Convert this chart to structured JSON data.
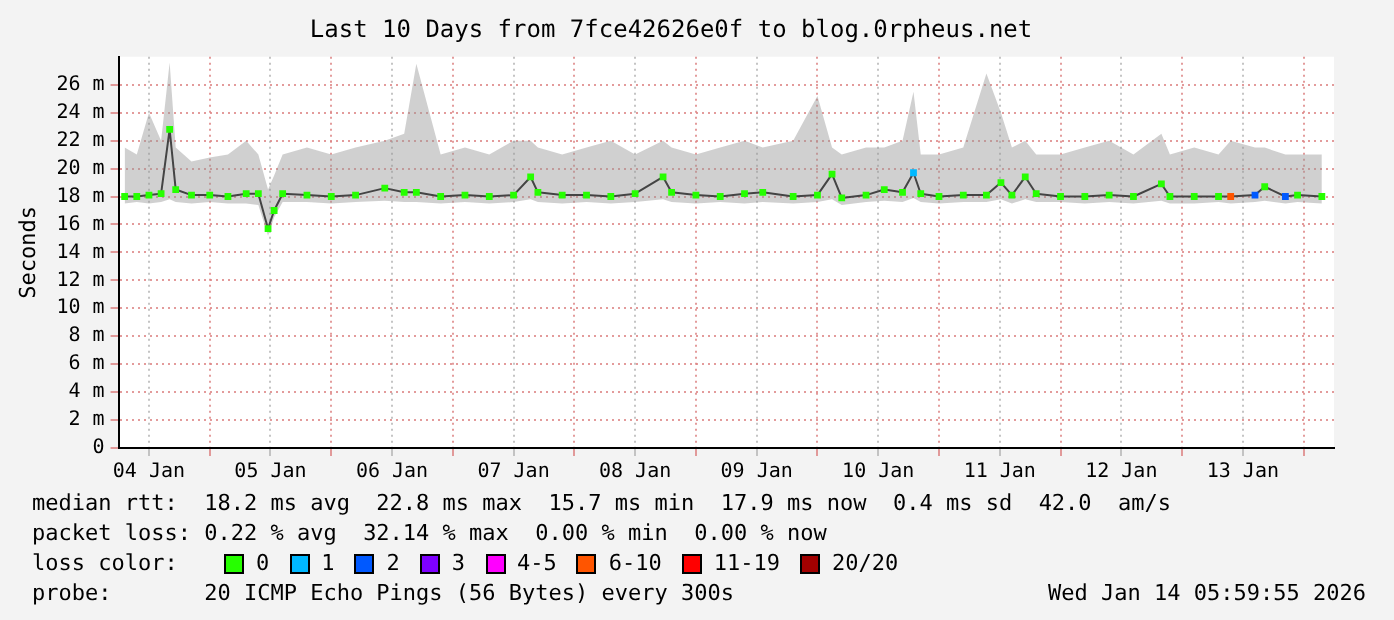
{
  "chart_data": {
    "type": "line",
    "title": "Last 10 Days from 7fce42626e0f to blog.0rpheus.net",
    "ylabel": "Seconds",
    "legend_title": "loss color:",
    "legend": "bottom",
    "grid": true,
    "xlim": [
      "2026-01-04T06:00",
      "2026-01-14T06:00"
    ],
    "xticks": [
      {
        "value": "2026-01-04T12:00",
        "label": "04 Jan"
      },
      {
        "value": "2026-01-05T00:00",
        "label": null
      },
      {
        "value": "2026-01-05T12:00",
        "label": "05 Jan"
      },
      {
        "value": "2026-01-06T00:00",
        "label": null
      },
      {
        "value": "2026-01-06T12:00",
        "label": "06 Jan"
      },
      {
        "value": "2026-01-07T00:00",
        "label": null
      },
      {
        "value": "2026-01-07T12:00",
        "label": "07 Jan"
      },
      {
        "value": "2026-01-08T00:00",
        "label": null
      },
      {
        "value": "2026-01-08T12:00",
        "label": "08 Jan"
      },
      {
        "value": "2026-01-09T00:00",
        "label": null
      },
      {
        "value": "2026-01-09T12:00",
        "label": "09 Jan"
      },
      {
        "value": "2026-01-10T00:00",
        "label": null
      },
      {
        "value": "2026-01-10T12:00",
        "label": "10 Jan"
      },
      {
        "value": "2026-01-11T00:00",
        "label": null
      },
      {
        "value": "2026-01-11T12:00",
        "label": "11 Jan"
      },
      {
        "value": "2026-01-12T00:00",
        "label": null
      },
      {
        "value": "2026-01-12T12:00",
        "label": "12 Jan"
      },
      {
        "value": "2026-01-13T00:00",
        "label": null
      },
      {
        "value": "2026-01-13T12:00",
        "label": "13 Jan"
      },
      {
        "value": "2026-01-14T00:00",
        "label": null
      }
    ],
    "ylim": [
      0,
      28
    ],
    "yticks": [
      0,
      {
        "value": 2,
        "label": "2 m"
      },
      {
        "value": 4,
        "label": "4 m"
      },
      {
        "value": 6,
        "label": "6 m"
      },
      {
        "value": 8,
        "label": "8 m"
      },
      {
        "value": 10,
        "label": "10 m"
      },
      {
        "value": 12,
        "label": "12 m"
      },
      {
        "value": 14,
        "label": "14 m"
      },
      {
        "value": 16,
        "label": "16 m"
      },
      {
        "value": 18,
        "label": "18 m"
      },
      {
        "value": 20,
        "label": "20 m"
      },
      {
        "value": 22,
        "label": "22 m"
      },
      {
        "value": 24,
        "label": "24 m"
      },
      {
        "value": 26,
        "label": "26 m"
      }
    ],
    "series": [
      {
        "color": "#000000",
        "x": [
          "2026-01-04T07:12",
          "2026-01-04T09:36",
          "2026-01-04T12:00",
          "2026-01-04T14:24",
          "2026-01-04T16:05",
          "2026-01-04T17:17",
          "2026-01-04T20:24",
          "2026-01-05T00:00",
          "2026-01-05T03:36",
          "2026-01-05T07:12",
          "2026-01-05T09:36",
          "2026-01-05T11:31",
          "2026-01-05T12:43",
          "2026-01-05T14:24",
          "2026-01-05T19:12",
          "2026-01-06T00:00",
          "2026-01-06T04:48",
          "2026-01-06T10:34",
          "2026-01-06T14:24",
          "2026-01-06T16:48",
          "2026-01-06T21:36",
          "2026-01-07T02:24",
          "2026-01-07T07:12",
          "2026-01-07T12:00",
          "2026-01-07T15:22",
          "2026-01-07T16:48",
          "2026-01-07T21:36",
          "2026-01-08T02:24",
          "2026-01-08T07:12",
          "2026-01-08T12:00",
          "2026-01-08T17:31",
          "2026-01-08T19:12",
          "2026-01-09T00:00",
          "2026-01-09T04:48",
          "2026-01-09T09:36",
          "2026-01-09T13:12",
          "2026-01-09T19:12",
          "2026-01-10T00:00",
          "2026-01-10T02:53",
          "2026-01-10T04:48",
          "2026-01-10T09:36",
          "2026-01-10T13:12",
          "2026-01-10T16:48",
          "2026-01-10T18:58",
          "2026-01-10T20:24",
          "2026-01-11T00:00",
          "2026-01-11T04:48",
          "2026-01-11T09:22",
          "2026-01-11T12:14",
          "2026-01-11T14:24",
          "2026-01-11T17:02",
          "2026-01-11T19:12",
          "2026-01-12T00:00",
          "2026-01-12T04:48",
          "2026-01-12T09:36",
          "2026-01-12T14:24",
          "2026-01-12T19:55",
          "2026-01-12T21:36",
          "2026-01-13T02:24",
          "2026-01-13T07:12",
          "2026-01-13T09:36",
          "2026-01-13T14:24",
          "2026-01-13T16:19",
          "2026-01-13T20:24",
          "2026-01-13T22:48",
          "2026-01-14T03:36"
        ],
        "values": [
          18,
          18,
          18.1,
          18.2,
          22.8,
          18.5,
          18.1,
          18.1,
          18,
          18.2,
          18.2,
          15.7,
          17,
          18.2,
          18.1,
          18,
          18.1,
          18.6,
          18.3,
          18.3,
          18,
          18.1,
          18,
          18.1,
          19.4,
          18.3,
          18.1,
          18.1,
          18,
          18.2,
          19.4,
          18.3,
          18.1,
          18,
          18.2,
          18.3,
          18,
          18.1,
          19.6,
          17.9,
          18.1,
          18.5,
          18.3,
          19.7,
          18.2,
          18,
          18.1,
          18.1,
          19,
          18.1,
          19.4,
          18.2,
          18,
          18,
          18.1,
          18,
          18.9,
          18,
          18,
          18,
          18,
          18.1,
          18.7,
          18,
          18.1,
          18
        ],
        "lower": [
          17.5,
          17.6,
          17.5,
          17.6,
          17.8,
          17.6,
          17.5,
          17.6,
          17.5,
          17.5,
          17.4,
          15.2,
          16.5,
          17.6,
          17.6,
          17.5,
          17.6,
          17.7,
          17.6,
          17.6,
          17.5,
          17.6,
          17.5,
          17.6,
          17.8,
          17.6,
          17.5,
          17.6,
          17.5,
          17.6,
          17.8,
          17.6,
          17.5,
          17.6,
          17.5,
          17.6,
          17.5,
          17.6,
          17.8,
          17.4,
          17.6,
          17.7,
          17.6,
          17.9,
          17.6,
          17.5,
          17.6,
          17.6,
          17.8,
          17.5,
          17.8,
          17.6,
          17.6,
          17.5,
          17.6,
          17.5,
          17.7,
          17.5,
          17.5,
          17.6,
          17.5,
          17.6,
          17.7,
          17.5,
          17.6,
          17.5
        ],
        "upper": [
          21.5,
          21,
          24,
          22,
          27.6,
          21.5,
          20.5,
          20.8,
          21,
          22,
          21,
          18.5,
          19.5,
          21,
          21.5,
          21,
          21.5,
          22,
          22.5,
          27.5,
          21,
          21.5,
          21,
          22,
          22,
          21.5,
          21,
          21.5,
          22,
          21,
          22,
          21.5,
          21,
          21.5,
          22,
          21.5,
          22,
          25.2,
          21.5,
          21,
          21.5,
          21.5,
          22,
          25.5,
          21,
          21,
          21.5,
          26.8,
          24,
          21.5,
          22,
          21,
          21,
          21.5,
          22,
          21,
          22.5,
          21,
          21.5,
          21,
          22,
          21.5,
          21.5,
          21,
          21,
          21
        ]
      },
      {
        "type": "scatter",
        "name": "0",
        "color": "#26ff00",
        "marker": "square",
        "x": [
          "2026-01-04T07:12",
          "2026-01-04T09:36",
          "2026-01-04T12:00",
          "2026-01-04T14:24",
          "2026-01-04T16:05",
          "2026-01-04T17:17",
          "2026-01-04T20:24",
          "2026-01-05T00:00",
          "2026-01-05T03:36",
          "2026-01-05T07:12",
          "2026-01-05T09:36",
          "2026-01-05T11:31",
          "2026-01-05T12:43",
          "2026-01-05T14:24",
          "2026-01-05T19:12",
          "2026-01-06T00:00",
          "2026-01-06T04:48",
          "2026-01-06T10:34",
          "2026-01-06T14:24",
          "2026-01-06T16:48",
          "2026-01-06T21:36",
          "2026-01-07T02:24",
          "2026-01-07T07:12",
          "2026-01-07T12:00",
          "2026-01-07T15:22",
          "2026-01-07T16:48",
          "2026-01-07T21:36",
          "2026-01-08T02:24",
          "2026-01-08T07:12",
          "2026-01-08T12:00",
          "2026-01-08T17:31",
          "2026-01-08T19:12",
          "2026-01-09T00:00",
          "2026-01-09T04:48",
          "2026-01-09T09:36",
          "2026-01-09T13:12",
          "2026-01-09T19:12",
          "2026-01-10T00:00",
          "2026-01-10T02:53",
          "2026-01-10T04:48",
          "2026-01-10T09:36",
          "2026-01-10T13:12",
          "2026-01-10T16:48",
          "2026-01-10T20:24",
          "2026-01-11T00:00",
          "2026-01-11T04:48",
          "2026-01-11T09:22",
          "2026-01-11T12:14",
          "2026-01-11T14:24",
          "2026-01-11T17:02",
          "2026-01-11T19:12",
          "2026-01-12T00:00",
          "2026-01-12T04:48",
          "2026-01-12T09:36",
          "2026-01-12T14:24",
          "2026-01-12T19:55",
          "2026-01-12T21:36",
          "2026-01-13T02:24",
          "2026-01-13T07:12",
          "2026-01-13T16:19",
          "2026-01-13T22:48",
          "2026-01-14T03:36"
        ],
        "values": [
          18,
          18,
          18.1,
          18.2,
          22.8,
          18.5,
          18.1,
          18.1,
          18,
          18.2,
          18.2,
          15.7,
          17,
          18.2,
          18.1,
          18,
          18.1,
          18.6,
          18.3,
          18.3,
          18,
          18.1,
          18,
          18.1,
          19.4,
          18.3,
          18.1,
          18.1,
          18,
          18.2,
          19.4,
          18.3,
          18.1,
          18,
          18.2,
          18.3,
          18,
          18.1,
          19.6,
          17.9,
          18.1,
          18.5,
          18.3,
          18.2,
          18,
          18.1,
          18.1,
          19,
          18.1,
          19.4,
          18.2,
          18,
          18,
          18.1,
          18,
          18.9,
          18,
          18,
          18,
          18.7,
          18.1,
          18
        ]
      },
      {
        "type": "scatter",
        "name": "1",
        "color": "#00b8ff",
        "marker": "square",
        "x": [
          "2026-01-10T18:58"
        ],
        "values": [
          19.7
        ]
      },
      {
        "type": "scatter",
        "name": "2",
        "color": "#0059ff",
        "marker": "square",
        "x": [
          "2026-01-13T14:24",
          "2026-01-13T20:24"
        ],
        "values": [
          18.1,
          18
        ]
      },
      {
        "type": "scatter",
        "name": "3",
        "color": "#7e00ff",
        "marker": "square"
      },
      {
        "type": "scatter",
        "name": "4-5",
        "color": "#ff00ff",
        "marker": "square"
      },
      {
        "type": "scatter",
        "name": "6-10",
        "color": "#ff5500",
        "marker": "square",
        "x": [
          "2026-01-13T09:36"
        ],
        "values": [
          18
        ]
      },
      {
        "type": "scatter",
        "name": "11-19",
        "color": "#ff0000",
        "marker": "square"
      },
      {
        "type": "scatter",
        "name": "20/20",
        "color": "#a10000",
        "marker": "square"
      }
    ],
    "annotations": [
      "median rtt:  18.2 ms avg  22.8 ms max  15.7 ms min  17.9 ms now  0.4 ms sd  42.0  am/s",
      "packet loss: 0.22 % avg  32.14 % max  0.00 % min  0.00 % now",
      "probe:       20 ICMP Echo Pings (56 Bytes) every 300s",
      "Wed Jan 14 05:59:55 2026"
    ]
  }
}
